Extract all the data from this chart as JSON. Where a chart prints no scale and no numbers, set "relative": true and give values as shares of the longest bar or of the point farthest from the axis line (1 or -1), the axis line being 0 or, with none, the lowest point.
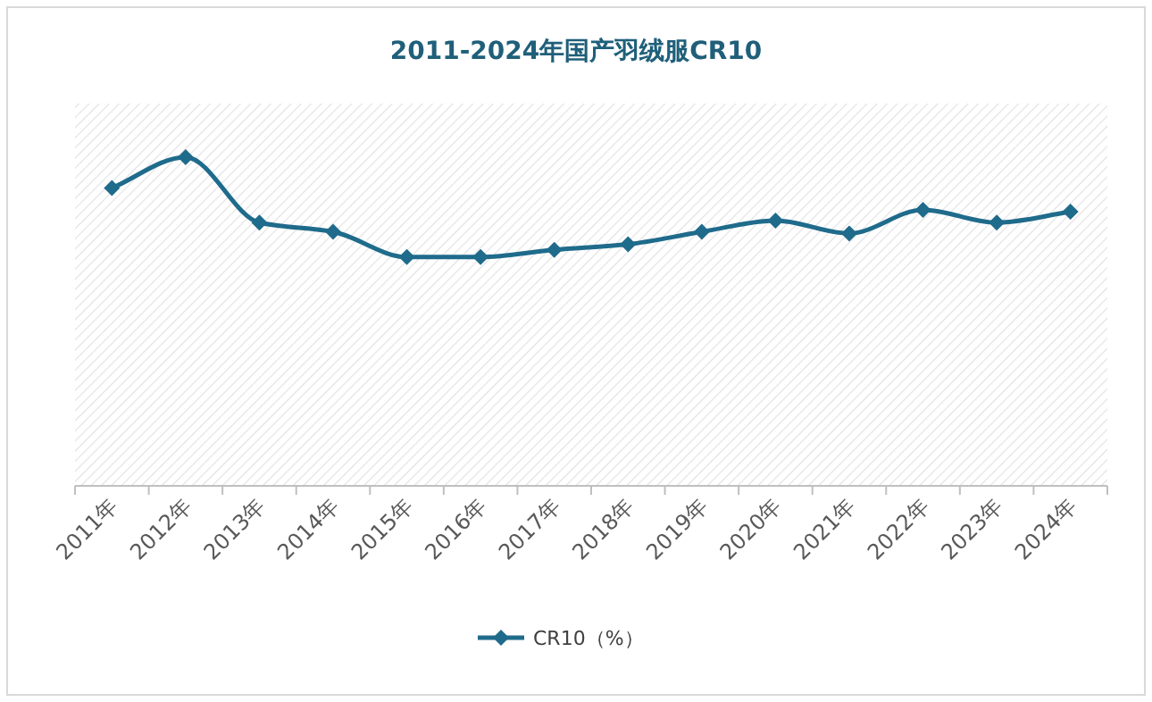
{
  "chart_data": {
    "type": "line",
    "title": "2011-2024年国产羽绒服CR10",
    "categories": [
      "2011年",
      "2012年",
      "2013年",
      "2014年",
      "2015年",
      "2016年",
      "2017年",
      "2018年",
      "2019年",
      "2020年",
      "2021年",
      "2022年",
      "2023年",
      "2024年"
    ],
    "series": [
      {
        "name": "CR10（%）",
        "color": "#1f6b8c",
        "values": [
          0.906,
          1,
          0.801,
          0.773,
          0.696,
          0.696,
          0.718,
          0.735,
          0.773,
          0.807,
          0.768,
          0.84,
          0.801,
          0.834
        ]
      }
    ],
    "relative": true,
    "legend": "bottom",
    "marker": "diamond"
  }
}
